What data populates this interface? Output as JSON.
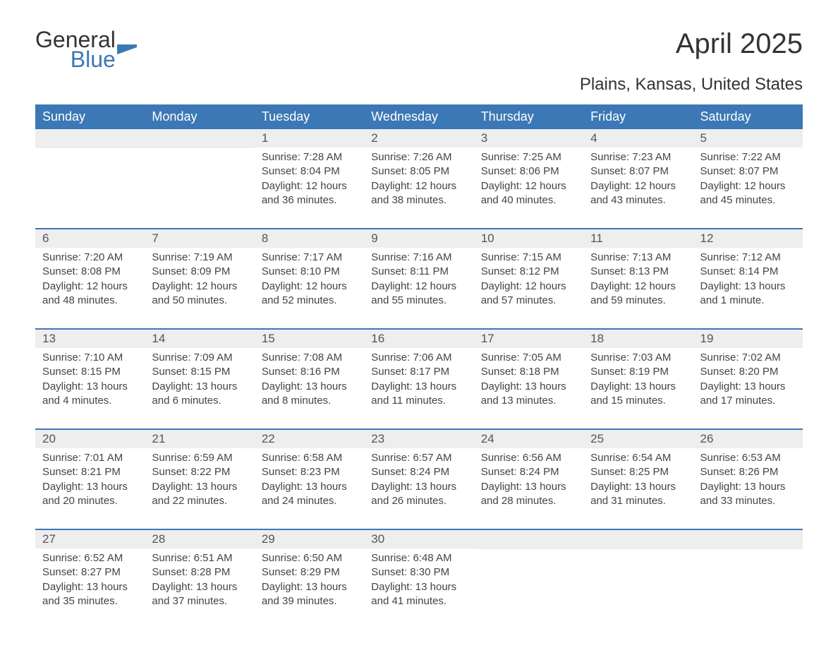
{
  "brand": {
    "word1": "General",
    "word2": "Blue",
    "mark_color": "#3b78b5"
  },
  "title": "April 2025",
  "subtitle": "Plains, Kansas, United States",
  "colors": {
    "header_bg": "#3b78b5",
    "header_text": "#ffffff",
    "daynum_bg": "#eeeeee",
    "week_divider": "#3b78b5",
    "body_text": "#444444",
    "page_bg": "#ffffff"
  },
  "typography": {
    "title_fontsize": 40,
    "subtitle_fontsize": 24,
    "dow_fontsize": 18,
    "body_fontsize": 15,
    "font_family": "Arial"
  },
  "dow": [
    "Sunday",
    "Monday",
    "Tuesday",
    "Wednesday",
    "Thursday",
    "Friday",
    "Saturday"
  ],
  "labels": {
    "sunrise": "Sunrise:",
    "sunset": "Sunset:",
    "daylight": "Daylight:"
  },
  "weeks": [
    [
      {
        "n": null
      },
      {
        "n": null
      },
      {
        "n": "1",
        "sunrise": "7:28 AM",
        "sunset": "8:04 PM",
        "daylight": "12 hours and 36 minutes."
      },
      {
        "n": "2",
        "sunrise": "7:26 AM",
        "sunset": "8:05 PM",
        "daylight": "12 hours and 38 minutes."
      },
      {
        "n": "3",
        "sunrise": "7:25 AM",
        "sunset": "8:06 PM",
        "daylight": "12 hours and 40 minutes."
      },
      {
        "n": "4",
        "sunrise": "7:23 AM",
        "sunset": "8:07 PM",
        "daylight": "12 hours and 43 minutes."
      },
      {
        "n": "5",
        "sunrise": "7:22 AM",
        "sunset": "8:07 PM",
        "daylight": "12 hours and 45 minutes."
      }
    ],
    [
      {
        "n": "6",
        "sunrise": "7:20 AM",
        "sunset": "8:08 PM",
        "daylight": "12 hours and 48 minutes."
      },
      {
        "n": "7",
        "sunrise": "7:19 AM",
        "sunset": "8:09 PM",
        "daylight": "12 hours and 50 minutes."
      },
      {
        "n": "8",
        "sunrise": "7:17 AM",
        "sunset": "8:10 PM",
        "daylight": "12 hours and 52 minutes."
      },
      {
        "n": "9",
        "sunrise": "7:16 AM",
        "sunset": "8:11 PM",
        "daylight": "12 hours and 55 minutes."
      },
      {
        "n": "10",
        "sunrise": "7:15 AM",
        "sunset": "8:12 PM",
        "daylight": "12 hours and 57 minutes."
      },
      {
        "n": "11",
        "sunrise": "7:13 AM",
        "sunset": "8:13 PM",
        "daylight": "12 hours and 59 minutes."
      },
      {
        "n": "12",
        "sunrise": "7:12 AM",
        "sunset": "8:14 PM",
        "daylight": "13 hours and 1 minute."
      }
    ],
    [
      {
        "n": "13",
        "sunrise": "7:10 AM",
        "sunset": "8:15 PM",
        "daylight": "13 hours and 4 minutes."
      },
      {
        "n": "14",
        "sunrise": "7:09 AM",
        "sunset": "8:15 PM",
        "daylight": "13 hours and 6 minutes."
      },
      {
        "n": "15",
        "sunrise": "7:08 AM",
        "sunset": "8:16 PM",
        "daylight": "13 hours and 8 minutes."
      },
      {
        "n": "16",
        "sunrise": "7:06 AM",
        "sunset": "8:17 PM",
        "daylight": "13 hours and 11 minutes."
      },
      {
        "n": "17",
        "sunrise": "7:05 AM",
        "sunset": "8:18 PM",
        "daylight": "13 hours and 13 minutes."
      },
      {
        "n": "18",
        "sunrise": "7:03 AM",
        "sunset": "8:19 PM",
        "daylight": "13 hours and 15 minutes."
      },
      {
        "n": "19",
        "sunrise": "7:02 AM",
        "sunset": "8:20 PM",
        "daylight": "13 hours and 17 minutes."
      }
    ],
    [
      {
        "n": "20",
        "sunrise": "7:01 AM",
        "sunset": "8:21 PM",
        "daylight": "13 hours and 20 minutes."
      },
      {
        "n": "21",
        "sunrise": "6:59 AM",
        "sunset": "8:22 PM",
        "daylight": "13 hours and 22 minutes."
      },
      {
        "n": "22",
        "sunrise": "6:58 AM",
        "sunset": "8:23 PM",
        "daylight": "13 hours and 24 minutes."
      },
      {
        "n": "23",
        "sunrise": "6:57 AM",
        "sunset": "8:24 PM",
        "daylight": "13 hours and 26 minutes."
      },
      {
        "n": "24",
        "sunrise": "6:56 AM",
        "sunset": "8:24 PM",
        "daylight": "13 hours and 28 minutes."
      },
      {
        "n": "25",
        "sunrise": "6:54 AM",
        "sunset": "8:25 PM",
        "daylight": "13 hours and 31 minutes."
      },
      {
        "n": "26",
        "sunrise": "6:53 AM",
        "sunset": "8:26 PM",
        "daylight": "13 hours and 33 minutes."
      }
    ],
    [
      {
        "n": "27",
        "sunrise": "6:52 AM",
        "sunset": "8:27 PM",
        "daylight": "13 hours and 35 minutes."
      },
      {
        "n": "28",
        "sunrise": "6:51 AM",
        "sunset": "8:28 PM",
        "daylight": "13 hours and 37 minutes."
      },
      {
        "n": "29",
        "sunrise": "6:50 AM",
        "sunset": "8:29 PM",
        "daylight": "13 hours and 39 minutes."
      },
      {
        "n": "30",
        "sunrise": "6:48 AM",
        "sunset": "8:30 PM",
        "daylight": "13 hours and 41 minutes."
      },
      {
        "n": null
      },
      {
        "n": null
      },
      {
        "n": null
      }
    ]
  ]
}
